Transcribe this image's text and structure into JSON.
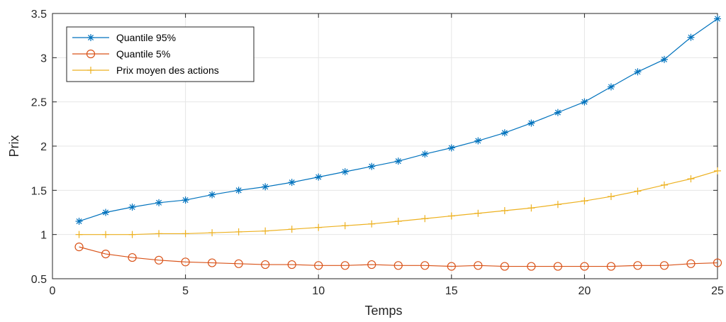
{
  "chart_data": {
    "type": "line",
    "xlabel": "Temps",
    "ylabel": "Prix",
    "xlim": [
      0,
      25
    ],
    "ylim": [
      0.5,
      3.5
    ],
    "xticks": [
      "0",
      "5",
      "10",
      "15",
      "20",
      "25"
    ],
    "yticks": [
      "0.5",
      "1",
      "1.5",
      "2",
      "2.5",
      "3",
      "3.5"
    ],
    "grid": true,
    "legend_position": "top-left",
    "x": [
      1,
      2,
      3,
      4,
      5,
      6,
      7,
      8,
      9,
      10,
      11,
      12,
      13,
      14,
      15,
      16,
      17,
      18,
      19,
      20,
      21,
      22,
      23,
      24,
      25
    ],
    "series": [
      {
        "name": "Quantile 95%",
        "color": "#0072BD",
        "marker": "asterisk",
        "values": [
          1.15,
          1.25,
          1.31,
          1.36,
          1.39,
          1.45,
          1.5,
          1.54,
          1.59,
          1.65,
          1.71,
          1.77,
          1.83,
          1.91,
          1.98,
          2.06,
          2.15,
          2.26,
          2.38,
          2.5,
          2.67,
          2.84,
          2.98,
          3.23,
          3.44
        ]
      },
      {
        "name": "Quantile 5%",
        "color": "#D95319",
        "marker": "circle",
        "values": [
          0.86,
          0.78,
          0.74,
          0.71,
          0.69,
          0.68,
          0.67,
          0.66,
          0.66,
          0.65,
          0.65,
          0.66,
          0.65,
          0.65,
          0.64,
          0.65,
          0.64,
          0.64,
          0.64,
          0.64,
          0.64,
          0.65,
          0.65,
          0.67,
          0.68
        ]
      },
      {
        "name": "Prix moyen des actions",
        "color": "#EDB120",
        "marker": "plus",
        "values": [
          1.0,
          1.0,
          1.0,
          1.01,
          1.01,
          1.02,
          1.03,
          1.04,
          1.06,
          1.08,
          1.1,
          1.12,
          1.15,
          1.18,
          1.21,
          1.24,
          1.27,
          1.3,
          1.34,
          1.38,
          1.43,
          1.49,
          1.56,
          1.63,
          1.72
        ]
      }
    ]
  }
}
